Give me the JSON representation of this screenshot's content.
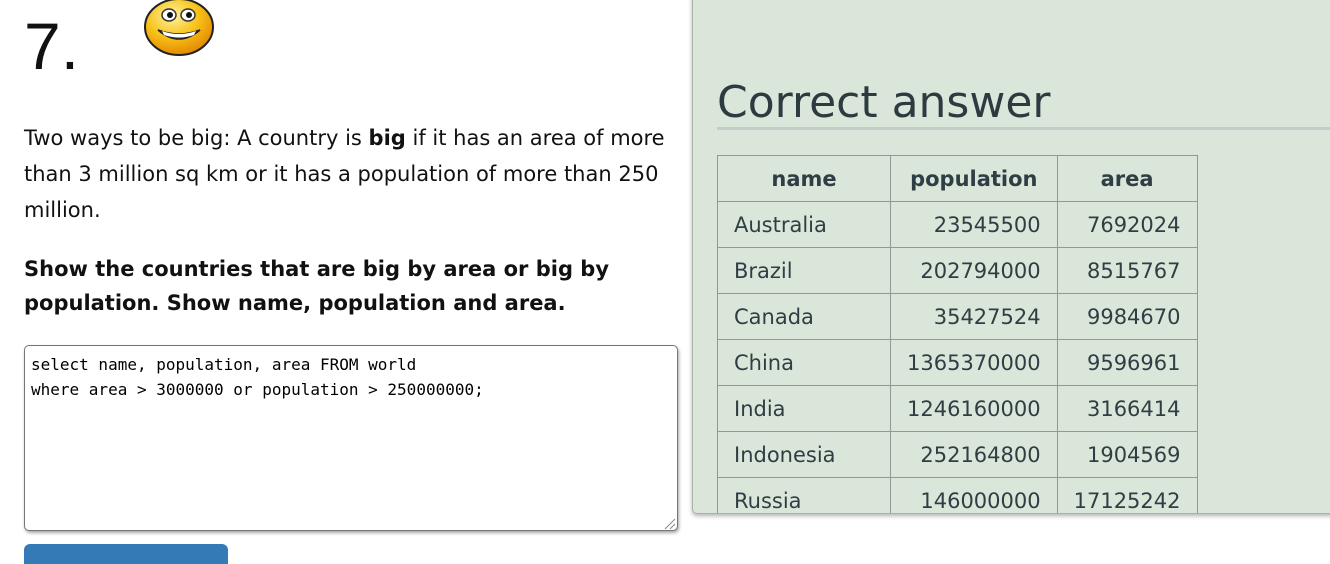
{
  "question": {
    "number": "7.",
    "description_parts": [
      "Two ways to be big: A country is ",
      "big",
      " if it has an area of more than 3 million sq km or it has a population of more than 250 million."
    ],
    "task": "Show the countries that are big by area or big by population. Show name, population and area.",
    "sql": "select name, population, area FROM world\nwhere area > 3000000 or population > 250000000;"
  },
  "answer": {
    "title": "Correct answer",
    "columns": [
      "name",
      "population",
      "area"
    ],
    "rows": [
      [
        "Australia",
        "23545500",
        "7692024"
      ],
      [
        "Brazil",
        "202794000",
        "8515767"
      ],
      [
        "Canada",
        "35427524",
        "9984670"
      ],
      [
        "China",
        "1365370000",
        "9596961"
      ],
      [
        "India",
        "1246160000",
        "3166414"
      ],
      [
        "Indonesia",
        "252164800",
        "1904569"
      ],
      [
        "Russia",
        "146000000",
        "17125242"
      ]
    ]
  },
  "colors": {
    "panel_bg": "#dbe6da",
    "button": "#337ab7"
  },
  "icons": {
    "status": "happy-smiley-icon"
  }
}
